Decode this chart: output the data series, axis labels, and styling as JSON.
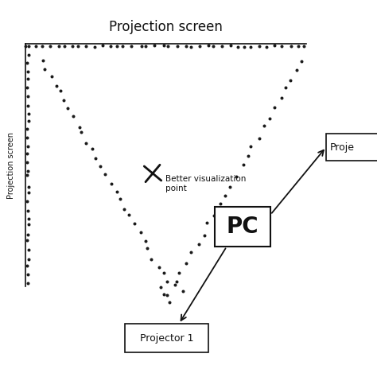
{
  "title_top": "Projection screen",
  "title_left": "Projection screen",
  "label_better": "Better visualization\npoint",
  "label_pc": "PC",
  "label_proj1": "Projector 1",
  "label_proj2": "Proje",
  "bg_color": "#ffffff",
  "dot_color": "#1a1a1a",
  "line_color": "#111111",
  "box_color": "#ffffff",
  "box_edge": "#111111",
  "text_color": "#111111",
  "dot_size": 3.5,
  "figsize": [
    4.74,
    4.74
  ],
  "dpi": 100
}
